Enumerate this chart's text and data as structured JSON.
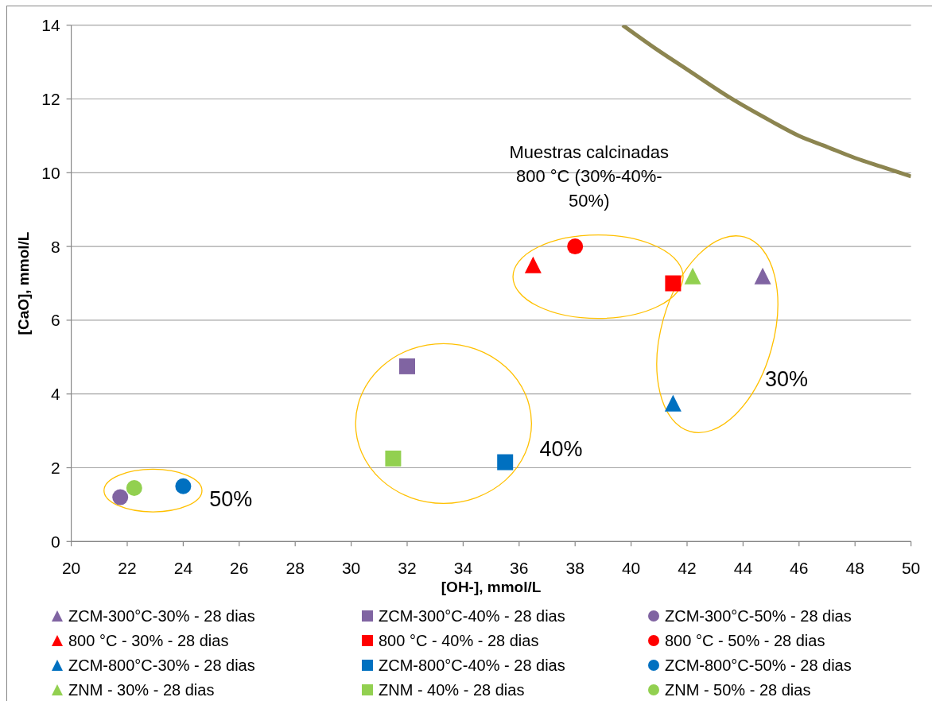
{
  "chart_data": {
    "type": "scatter",
    "xlabel": "[OH-], mmol/L",
    "ylabel": "[CaO], mmol/L",
    "xlim": [
      20,
      50
    ],
    "xticks": [
      20,
      22,
      24,
      26,
      28,
      30,
      32,
      34,
      36,
      38,
      40,
      42,
      44,
      46,
      48,
      50
    ],
    "ylim": [
      0,
      14
    ],
    "yticks": [
      0,
      2,
      4,
      6,
      8,
      10,
      12,
      14
    ],
    "grid": "y",
    "legend": "bottom",
    "series": [
      {
        "name": "ZCM-300°C-30% - 28 dias",
        "color": "#8064a2",
        "marker": "triangle",
        "x": [
          44.7
        ],
        "values": [
          7.2
        ]
      },
      {
        "name": "ZCM-300°C-40% - 28 dias",
        "color": "#8064a2",
        "marker": "square",
        "x": [
          32.0
        ],
        "values": [
          4.75
        ]
      },
      {
        "name": "ZCM-300°C-50% - 28 dias",
        "color": "#8064a2",
        "marker": "circle",
        "x": [
          21.75
        ],
        "values": [
          1.2
        ]
      },
      {
        "name": "800 °C - 30% - 28 dias",
        "color": "#ff0000",
        "marker": "triangle",
        "x": [
          36.5
        ],
        "values": [
          7.5
        ]
      },
      {
        "name": "800 °C - 40% - 28 dias",
        "color": "#ff0000",
        "marker": "square",
        "x": [
          41.5
        ],
        "values": [
          7.0
        ]
      },
      {
        "name": "800 °C - 50% - 28 dias",
        "color": "#ff0000",
        "marker": "circle",
        "x": [
          38.0
        ],
        "values": [
          8.0
        ]
      },
      {
        "name": "ZCM-800°C-30% - 28 dias",
        "color": "#0070c0",
        "marker": "triangle",
        "x": [
          41.5
        ],
        "values": [
          3.75
        ]
      },
      {
        "name": "ZCM-800°C-40% - 28 dias",
        "color": "#0070c0",
        "marker": "square",
        "x": [
          35.5
        ],
        "values": [
          2.15
        ]
      },
      {
        "name": "ZCM-800°C-50% - 28 dias",
        "color": "#0070c0",
        "marker": "circle",
        "x": [
          24.0
        ],
        "values": [
          1.5
        ]
      },
      {
        "name": "ZNM - 30% - 28 dias",
        "color": "#92d050",
        "marker": "triangle",
        "x": [
          42.2
        ],
        "values": [
          7.2
        ]
      },
      {
        "name": "ZNM - 40% - 28 dias",
        "color": "#92d050",
        "marker": "square",
        "x": [
          31.5
        ],
        "values": [
          2.25
        ]
      },
      {
        "name": "ZNM - 50% - 28 dias",
        "color": "#92d050",
        "marker": "circle",
        "x": [
          22.25
        ],
        "values": [
          1.45
        ]
      },
      {
        "type": "line",
        "color": "#8c8550",
        "x": [
          39.7,
          41,
          42,
          43.5,
          45,
          46,
          47,
          48,
          49,
          50
        ],
        "values": [
          14,
          13.3,
          12.8,
          12.05,
          11.4,
          11.0,
          10.7,
          10.4,
          10.15,
          9.9
        ]
      }
    ],
    "annotations": [
      "Muestras calcinadas 800 °C (30%-40%-50%)",
      "30%",
      "40%",
      "50%"
    ]
  }
}
